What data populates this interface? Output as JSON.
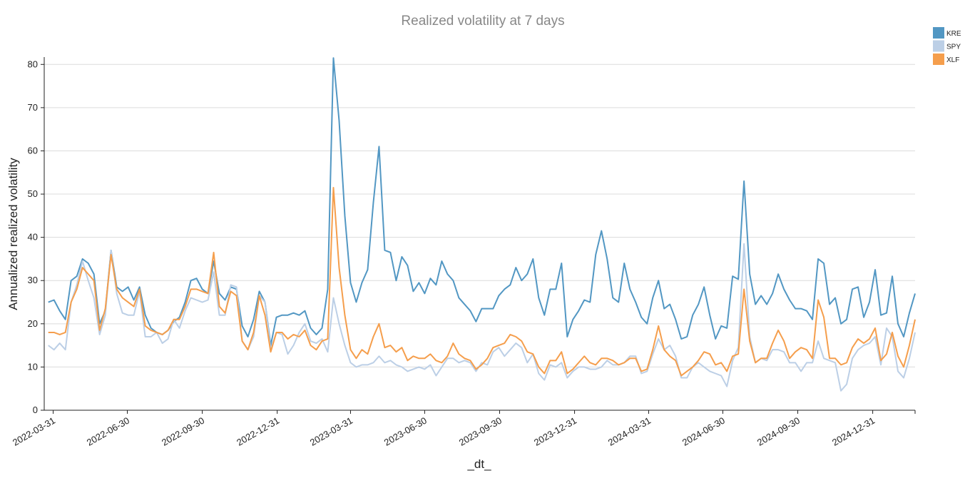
{
  "chart_data": {
    "type": "line",
    "title": "Realized volatility at 7 days",
    "x_label": "_dt_",
    "y_label": "Annualized realized volatility",
    "x": [
      "2022-03-25",
      "2022-04-01",
      "2022-04-08",
      "2022-04-15",
      "2022-04-22",
      "2022-04-29",
      "2022-05-06",
      "2022-05-13",
      "2022-05-20",
      "2022-05-27",
      "2022-06-03",
      "2022-06-10",
      "2022-06-17",
      "2022-06-24",
      "2022-07-01",
      "2022-07-08",
      "2022-07-15",
      "2022-07-22",
      "2022-07-29",
      "2022-08-05",
      "2022-08-12",
      "2022-08-19",
      "2022-08-26",
      "2022-09-02",
      "2022-09-09",
      "2022-09-16",
      "2022-09-23",
      "2022-09-30",
      "2022-10-07",
      "2022-10-14",
      "2022-10-21",
      "2022-10-28",
      "2022-11-04",
      "2022-11-11",
      "2022-11-18",
      "2022-11-25",
      "2022-12-02",
      "2022-12-09",
      "2022-12-16",
      "2022-12-23",
      "2022-12-30",
      "2023-01-06",
      "2023-01-13",
      "2023-01-20",
      "2023-01-27",
      "2023-02-03",
      "2023-02-10",
      "2023-02-17",
      "2023-02-24",
      "2023-03-03",
      "2023-03-10",
      "2023-03-17",
      "2023-03-24",
      "2023-03-31",
      "2023-04-07",
      "2023-04-14",
      "2023-04-21",
      "2023-04-28",
      "2023-05-05",
      "2023-05-12",
      "2023-05-19",
      "2023-05-26",
      "2023-06-02",
      "2023-06-09",
      "2023-06-16",
      "2023-06-23",
      "2023-06-30",
      "2023-07-07",
      "2023-07-14",
      "2023-07-21",
      "2023-07-28",
      "2023-08-04",
      "2023-08-11",
      "2023-08-18",
      "2023-08-25",
      "2023-09-01",
      "2023-09-08",
      "2023-09-15",
      "2023-09-22",
      "2023-09-29",
      "2023-10-06",
      "2023-10-13",
      "2023-10-20",
      "2023-10-27",
      "2023-11-03",
      "2023-11-10",
      "2023-11-17",
      "2023-11-24",
      "2023-12-01",
      "2023-12-08",
      "2023-12-15",
      "2023-12-22",
      "2023-12-29",
      "2024-01-05",
      "2024-01-12",
      "2024-01-19",
      "2024-01-26",
      "2024-02-02",
      "2024-02-09",
      "2024-02-16",
      "2024-02-23",
      "2024-03-01",
      "2024-03-08",
      "2024-03-15",
      "2024-03-22",
      "2024-03-29",
      "2024-04-05",
      "2024-04-12",
      "2024-04-19",
      "2024-04-26",
      "2024-05-03",
      "2024-05-10",
      "2024-05-17",
      "2024-05-24",
      "2024-05-31",
      "2024-06-07",
      "2024-06-14",
      "2024-06-21",
      "2024-06-28",
      "2024-07-05",
      "2024-07-12",
      "2024-07-19",
      "2024-07-26",
      "2024-08-02",
      "2024-08-09",
      "2024-08-16",
      "2024-08-23",
      "2024-08-30",
      "2024-09-06",
      "2024-09-13",
      "2024-09-20",
      "2024-09-27",
      "2024-10-04",
      "2024-10-11",
      "2024-10-18",
      "2024-10-25",
      "2024-11-01",
      "2024-11-08",
      "2024-11-15",
      "2024-11-22",
      "2024-11-29",
      "2024-12-06",
      "2024-12-13",
      "2024-12-20",
      "2024-12-27",
      "2025-01-03",
      "2025-01-10",
      "2025-01-17",
      "2025-01-24",
      "2025-01-31",
      "2025-02-07",
      "2025-02-14",
      "2025-02-21"
    ],
    "series": [
      {
        "name": "KRE",
        "color": "#5297c3",
        "values": [
          25,
          25.5,
          23,
          21,
          30,
          31,
          35,
          34,
          31.5,
          20,
          23,
          37,
          28.5,
          27.5,
          28.5,
          25.5,
          28.5,
          22,
          19,
          18,
          17.5,
          18.5,
          20.5,
          21.5,
          25,
          30,
          30.5,
          28,
          27,
          34.5,
          27,
          25.5,
          28.5,
          28,
          19.5,
          17,
          21,
          27.5,
          25,
          15,
          21.5,
          22,
          22,
          22.5,
          22,
          23,
          19,
          17.5,
          19,
          28,
          81.5,
          67,
          45,
          29.5,
          25,
          29.5,
          32.5,
          48,
          61,
          37,
          36.5,
          30,
          35.5,
          33.5,
          27.5,
          29.5,
          27,
          30.5,
          29,
          34.5,
          31.5,
          30,
          26,
          24.5,
          23,
          20.5,
          23.5,
          23.5,
          23.5,
          26.5,
          28,
          29,
          33,
          30,
          31.5,
          35,
          26,
          22,
          28,
          28,
          34,
          17,
          21,
          23,
          25.5,
          25,
          36,
          41.5,
          35,
          26,
          25,
          34,
          28,
          25,
          21.5,
          20,
          26,
          30,
          23.5,
          24.5,
          21,
          16.5,
          17,
          22,
          24.5,
          28.5,
          22,
          16.5,
          19.5,
          19,
          31,
          30.3,
          53,
          31.5,
          24.5,
          26.5,
          24.5,
          27,
          31.5,
          28,
          25.5,
          23.5,
          23.5,
          23,
          21,
          35,
          34,
          24.5,
          26,
          20,
          21,
          28,
          28.5,
          21.5,
          25,
          32.5,
          22,
          22.5,
          31,
          20,
          17,
          22.5,
          27
        ]
      },
      {
        "name": "SPY",
        "color": "#bccfe6",
        "values": [
          15,
          14,
          15.5,
          14,
          25,
          29,
          34.5,
          30,
          26,
          17.5,
          22,
          37,
          27,
          22.5,
          22,
          22,
          27.5,
          17,
          17,
          18,
          15.5,
          16.5,
          21,
          19,
          23,
          26,
          25.5,
          25,
          25.5,
          32,
          22,
          22,
          29,
          28.5,
          16,
          14,
          17,
          26.5,
          25,
          14,
          18,
          17.5,
          13,
          15,
          18,
          20,
          16,
          15.5,
          16.5,
          13.5,
          26,
          20,
          15,
          11,
          10,
          10.5,
          10.5,
          11,
          12.5,
          11,
          11.5,
          10.5,
          10,
          9,
          9.5,
          10,
          9.5,
          10.5,
          8,
          10,
          12,
          12,
          11,
          11.5,
          11,
          9,
          11,
          10.5,
          13.5,
          14.5,
          12.5,
          14,
          15.5,
          14.5,
          11,
          13,
          8.5,
          7,
          10.5,
          10,
          11,
          7.5,
          9,
          10,
          10,
          9.5,
          9.5,
          10,
          11.5,
          10.5,
          10.5,
          11,
          12.5,
          12.5,
          8.5,
          9,
          13,
          16.5,
          14,
          15,
          12.5,
          7.5,
          7.5,
          10,
          11,
          10,
          9,
          8.5,
          8,
          5.5,
          11.5,
          14.5,
          38.5,
          17,
          11,
          12,
          11.5,
          14,
          14,
          13.5,
          11,
          11,
          9,
          11,
          11,
          16,
          12,
          11.5,
          11,
          4.5,
          6,
          12,
          14,
          15,
          15.5,
          17,
          10.5,
          19,
          17,
          9,
          7.5,
          12,
          18
        ]
      },
      {
        "name": "XLF",
        "color": "#f59e4c",
        "values": [
          18,
          18,
          17.5,
          18,
          25,
          28,
          33,
          31.5,
          30,
          18.5,
          23.5,
          36,
          28,
          26,
          25,
          24,
          28,
          19.5,
          18.5,
          18,
          17.5,
          18.5,
          21,
          21,
          24,
          28,
          28,
          27.5,
          27,
          36.5,
          24,
          22.5,
          27.5,
          26.5,
          16,
          14,
          18,
          26.5,
          22,
          13.5,
          18,
          18,
          16.5,
          17.5,
          17,
          18.5,
          15,
          14,
          16,
          16.5,
          51.5,
          33,
          22,
          14,
          12,
          14,
          13,
          17,
          20,
          14.5,
          15,
          13.5,
          14.5,
          11.5,
          12.5,
          12,
          12,
          13,
          11.5,
          11,
          12.5,
          15.5,
          13,
          12,
          11.5,
          9.5,
          10.5,
          12,
          14.5,
          15,
          15.5,
          17.5,
          17,
          16,
          13.5,
          13,
          10,
          8.5,
          11.5,
          11.5,
          13.5,
          8.5,
          9.5,
          11,
          12.5,
          11,
          10.5,
          12,
          12,
          11.5,
          10.5,
          11,
          12,
          12,
          9,
          9.5,
          14,
          19.5,
          14,
          12.5,
          11.5,
          8,
          9,
          10,
          11.5,
          13.5,
          13,
          10.5,
          11,
          9,
          12.5,
          13,
          28,
          16,
          11,
          12,
          12,
          15.5,
          18.5,
          16,
          12,
          13.5,
          14.5,
          14,
          12,
          25.5,
          21.5,
          12,
          12,
          10.5,
          11,
          14.5,
          16.5,
          15.5,
          16.5,
          19,
          11.5,
          13,
          18,
          12.5,
          10,
          15,
          21
        ]
      }
    ],
    "xlim": [
      "2022-03-20",
      "2025-02-21"
    ],
    "xticks": [
      "2022-03-31",
      "2022-06-30",
      "2022-09-30",
      "2022-12-31",
      "2023-03-31",
      "2023-06-30",
      "2023-09-30",
      "2023-12-31",
      "2024-03-31",
      "2024-06-30",
      "2024-09-30",
      "2024-12-31"
    ],
    "ylim": [
      0,
      81.7
    ],
    "yticks": [
      0,
      10,
      20,
      30,
      40,
      50,
      60,
      70,
      80
    ],
    "grid": true,
    "legend": "top-right"
  }
}
